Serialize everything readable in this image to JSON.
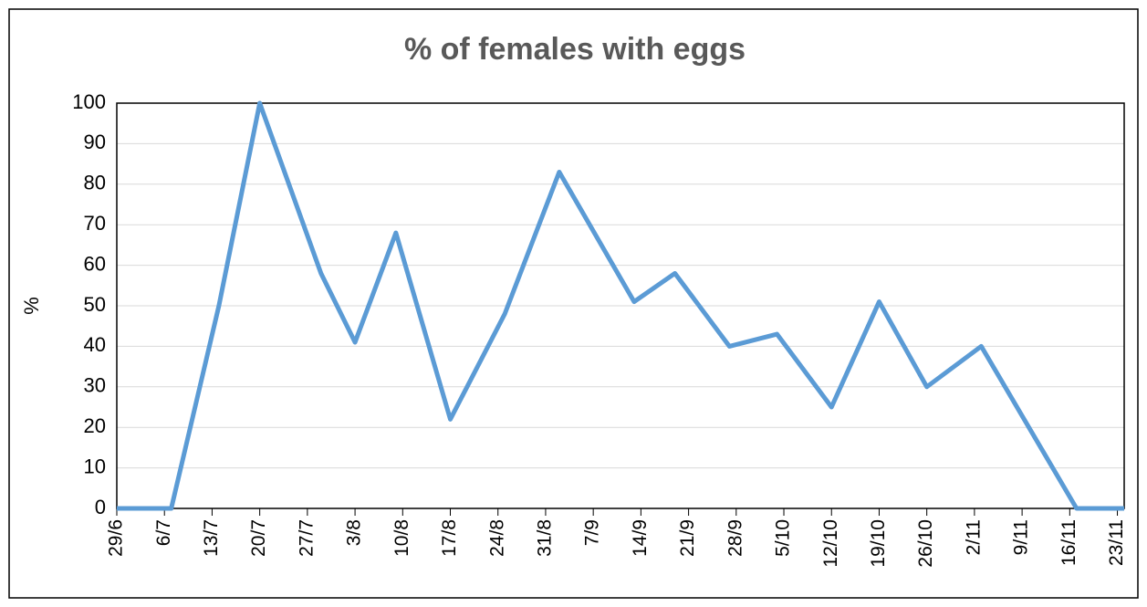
{
  "chart_data": {
    "type": "line",
    "title": "% of females with eggs",
    "y_label": "%",
    "x": [
      "29/6",
      "7/7",
      "14/7",
      "20/7",
      "29/7",
      "3/8",
      "9/8",
      "17/8",
      "25/8",
      "2/9",
      "13/9",
      "19/9",
      "27/9",
      "4/10",
      "12/10",
      "19/10",
      "26/10",
      "3/11",
      "17/11",
      "24/11"
    ],
    "series": [
      {
        "name": "% of females with eggs",
        "color": "#5b9bd5",
        "values": [
          0,
          0,
          50,
          100,
          58,
          41,
          68,
          22,
          48,
          83,
          51,
          58,
          40,
          43,
          25,
          51,
          30,
          40,
          0,
          0
        ]
      }
    ],
    "xlim": [
      "29/6",
      "24/11"
    ],
    "xticks": [
      "29/6",
      "6/7",
      "13/7",
      "20/7",
      "27/7",
      "3/8",
      "10/8",
      "17/8",
      "24/8",
      "31/8",
      "7/9",
      "14/9",
      "21/9",
      "28/9",
      "5/10",
      "12/10",
      "19/10",
      "26/10",
      "2/11",
      "9/11",
      "16/11",
      "23/11"
    ],
    "ylim": [
      0,
      100
    ],
    "yticks": [
      0,
      10,
      20,
      30,
      40,
      50,
      60,
      70,
      80,
      90,
      100
    ],
    "grid": true
  }
}
